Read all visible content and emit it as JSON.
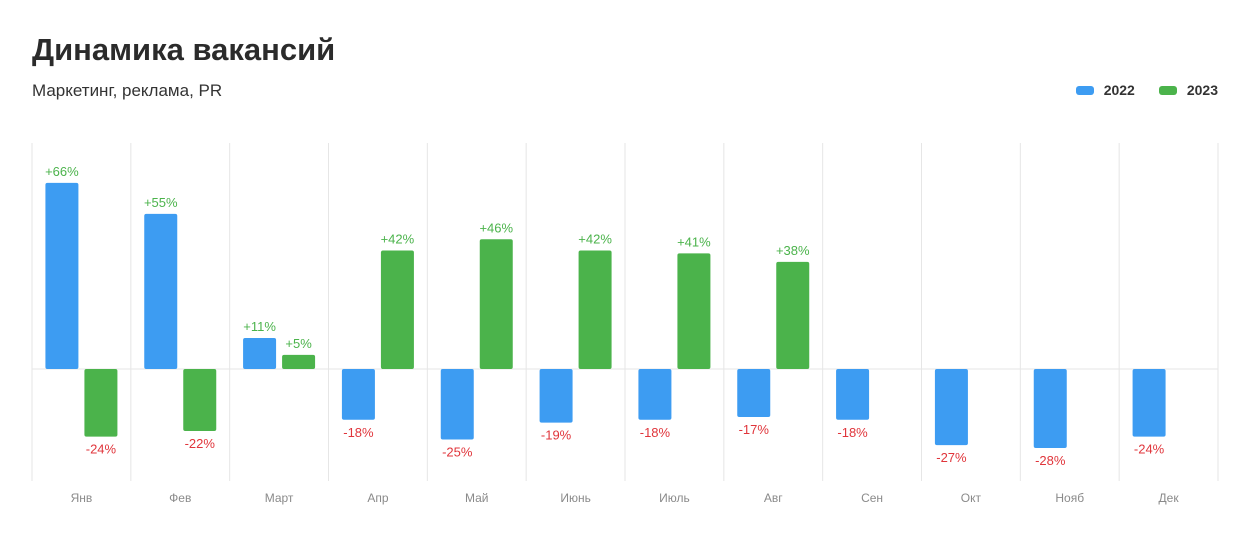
{
  "title": "Динамика вакансий",
  "subtitle": "Маркетинг, реклама, PR",
  "legend": [
    {
      "label": "2022",
      "color": "#3d9cf2"
    },
    {
      "label": "2023",
      "color": "#4bb34b"
    }
  ],
  "colors": {
    "positive_label": "#4bb34b",
    "negative_label": "#e0353b",
    "grid": "#e6e6e6"
  },
  "chart_data": {
    "type": "bar",
    "title": "Динамика вакансий",
    "subtitle": "Маркетинг, реклама, PR",
    "categories": [
      "Янв",
      "Фев",
      "Март",
      "Апр",
      "Май",
      "Июнь",
      "Июль",
      "Авг",
      "Сен",
      "Окт",
      "Нояб",
      "Дек"
    ],
    "series": [
      {
        "name": "2022",
        "values": [
          66,
          55,
          11,
          -18,
          -25,
          -19,
          -18,
          -17,
          -18,
          -27,
          -28,
          -24
        ]
      },
      {
        "name": "2023",
        "values": [
          -24,
          -22,
          5,
          42,
          46,
          42,
          41,
          38,
          null,
          null,
          null,
          null
        ]
      }
    ],
    "labels": [
      [
        "+66%",
        "+55%",
        "+11%",
        "-18%",
        "-25%",
        "-19%",
        "-18%",
        "-17%",
        "-18%",
        "-27%",
        "-28%",
        "-24%"
      ],
      [
        "-24%",
        "-22%",
        "+5%",
        "+42%",
        "+46%",
        "+42%",
        "+41%",
        "+38%",
        null,
        null,
        null,
        null
      ]
    ],
    "ylim": [
      -40,
      80
    ],
    "grid": true,
    "legend_position": "top-right",
    "xlabel": "",
    "ylabel": ""
  }
}
